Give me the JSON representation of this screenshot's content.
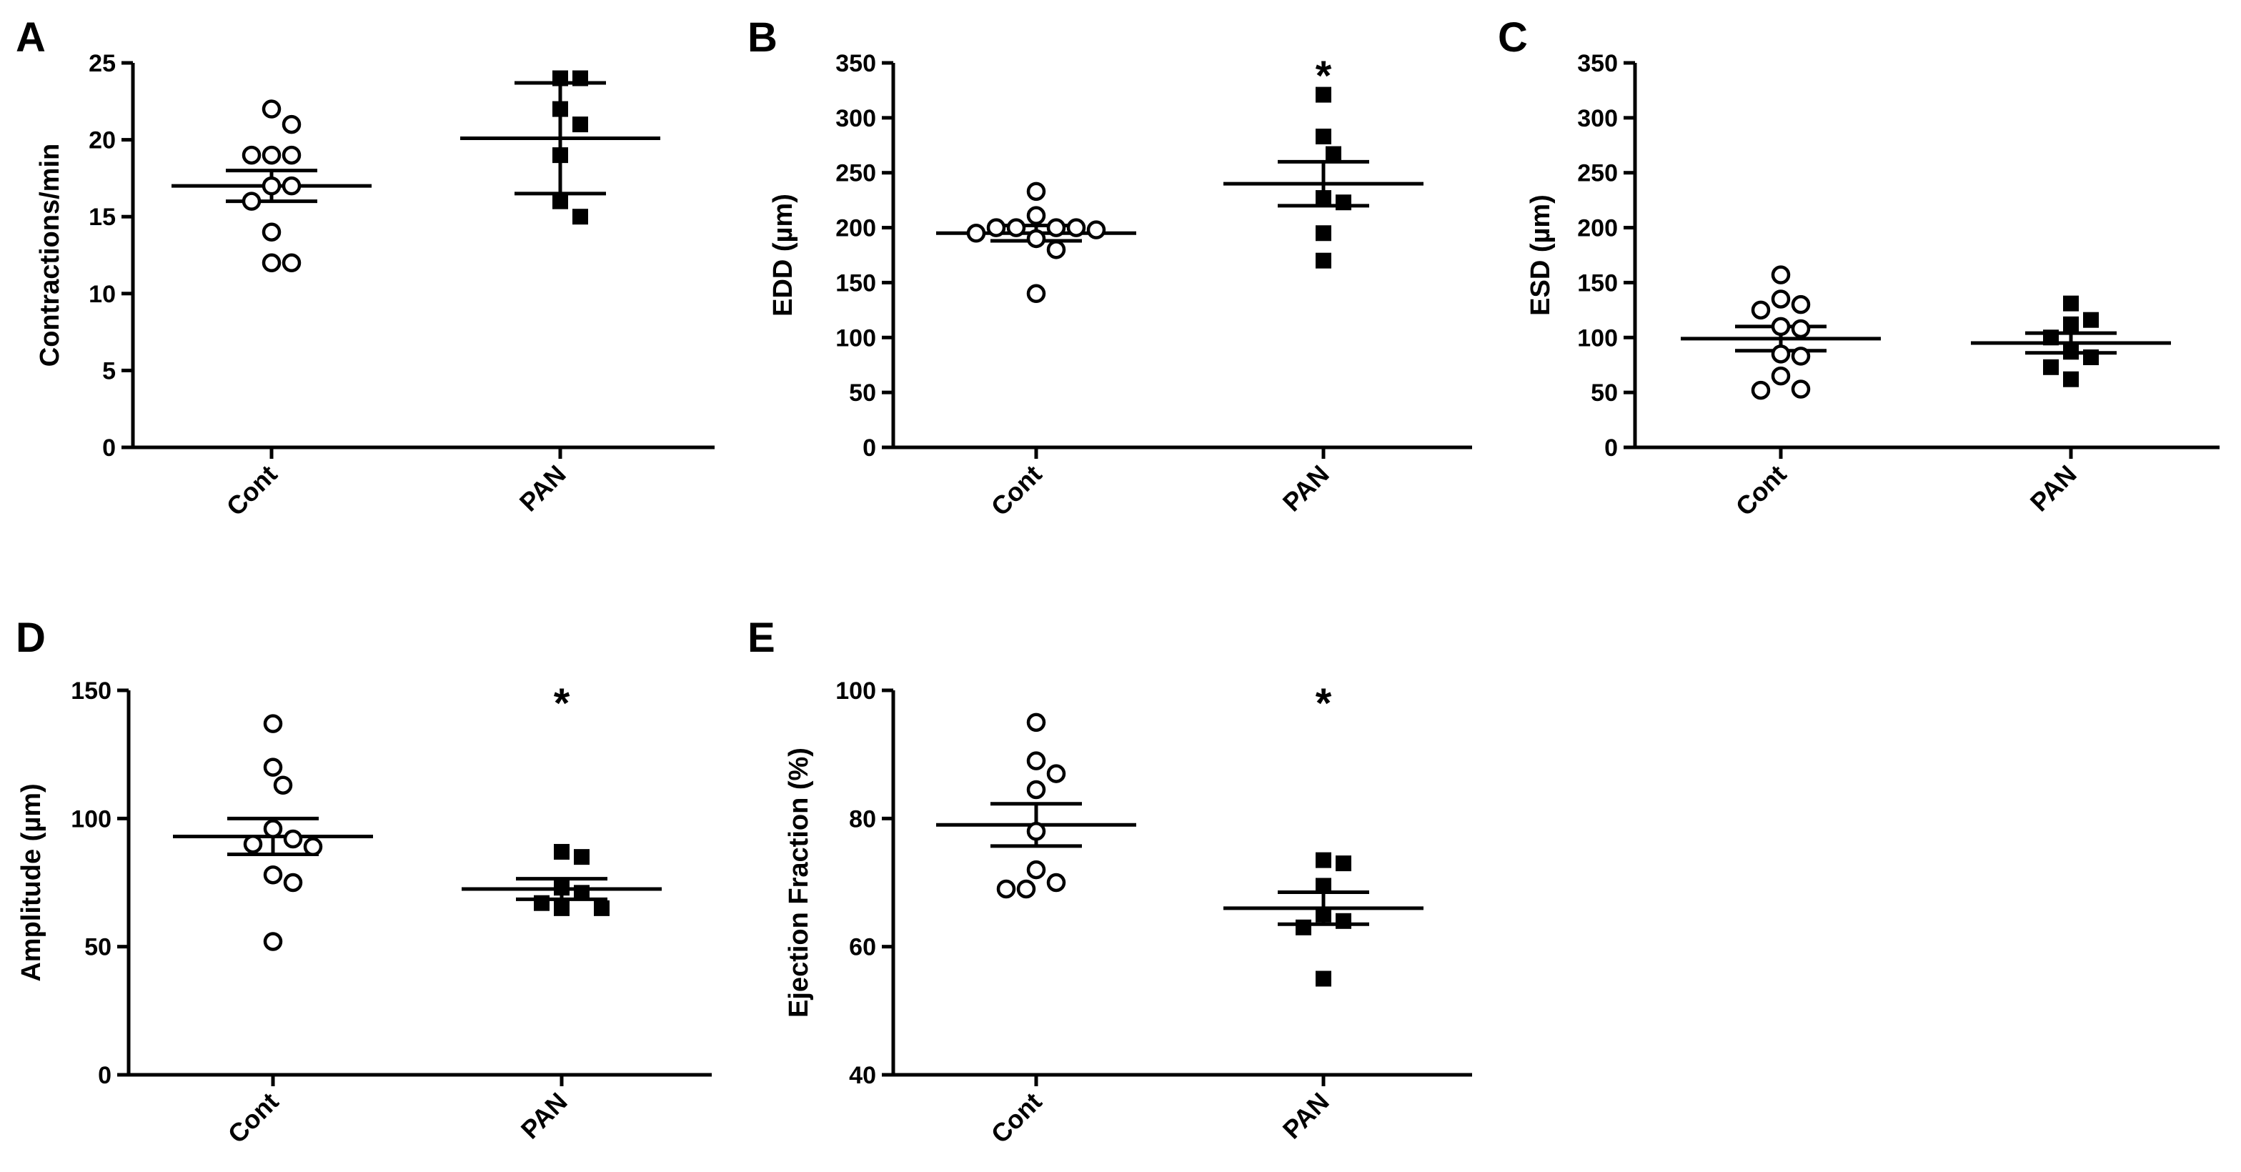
{
  "figure_title": "",
  "chart_data": [
    {
      "id": "A",
      "type": "scatter",
      "panel_label": "A",
      "title": "",
      "xlabel": "",
      "ylabel": "Contractions/min",
      "ylim": [
        0,
        25
      ],
      "yticks": [
        0,
        5,
        10,
        15,
        20,
        25
      ],
      "categories": [
        "Cont",
        "PAN"
      ],
      "significance": [
        "",
        ""
      ],
      "series": [
        {
          "name": "Cont",
          "marker": "open-circle",
          "values": [
            22,
            21,
            19,
            19,
            19,
            17,
            17,
            16,
            14,
            12,
            12
          ],
          "mean": 17.0,
          "sem": 1.0
        },
        {
          "name": "PAN",
          "marker": "filled-square",
          "values": [
            24,
            24,
            22,
            21,
            19,
            16,
            15
          ],
          "mean": 20.1,
          "sem_upper": 3.6,
          "sem_lower": 3.6
        }
      ]
    },
    {
      "id": "B",
      "type": "scatter",
      "panel_label": "B",
      "title": "",
      "xlabel": "",
      "ylabel": "EDD (µm)",
      "ylim": [
        0,
        350
      ],
      "yticks": [
        0,
        50,
        100,
        150,
        200,
        250,
        300,
        350
      ],
      "categories": [
        "Cont",
        "PAN"
      ],
      "significance": [
        "",
        "*"
      ],
      "series": [
        {
          "name": "Cont",
          "marker": "open-circle",
          "values": [
            233,
            211,
            200,
            200,
            200,
            200,
            198,
            195,
            190,
            180,
            140
          ],
          "mean": 195,
          "sem": 7
        },
        {
          "name": "PAN",
          "marker": "filled-square",
          "values": [
            321,
            283,
            267,
            223,
            227,
            195,
            170
          ],
          "mean": 240,
          "sem": 20
        }
      ]
    },
    {
      "id": "C",
      "type": "scatter",
      "panel_label": "C",
      "title": "",
      "xlabel": "",
      "ylabel": "ESD (µm)",
      "ylim": [
        0,
        350
      ],
      "yticks": [
        0,
        50,
        100,
        150,
        200,
        250,
        300,
        350
      ],
      "categories": [
        "Cont",
        "PAN"
      ],
      "significance": [
        "",
        ""
      ],
      "series": [
        {
          "name": "Cont",
          "marker": "open-circle",
          "values": [
            157,
            135,
            130,
            125,
            110,
            108,
            85,
            83,
            65,
            53,
            52
          ],
          "mean": 99,
          "sem": 11
        },
        {
          "name": "PAN",
          "marker": "filled-square",
          "values": [
            131,
            116,
            112,
            100,
            87,
            82,
            73,
            62
          ],
          "mean": 95,
          "sem": 9
        }
      ]
    },
    {
      "id": "D",
      "type": "scatter",
      "panel_label": "D",
      "title": "",
      "xlabel": "",
      "ylabel": "Amplitude (µm)",
      "ylim": [
        0,
        150
      ],
      "yticks": [
        0,
        50,
        100,
        150
      ],
      "categories": [
        "Cont",
        "PAN"
      ],
      "significance": [
        "",
        "*"
      ],
      "series": [
        {
          "name": "Cont",
          "marker": "open-circle",
          "values": [
            137,
            120,
            113,
            96,
            92,
            90,
            89,
            78,
            75,
            52
          ],
          "mean": 93,
          "sem": 7
        },
        {
          "name": "PAN",
          "marker": "filled-square",
          "values": [
            87,
            85,
            73,
            71,
            67,
            65,
            65
          ],
          "mean": 72.5,
          "sem": 4
        }
      ]
    },
    {
      "id": "E",
      "type": "scatter",
      "panel_label": "E",
      "title": "",
      "xlabel": "",
      "ylabel": "Ejection Fraction (%)",
      "ylim": [
        40,
        100
      ],
      "yticks": [
        40,
        60,
        80,
        100
      ],
      "categories": [
        "Cont",
        "PAN"
      ],
      "significance": [
        "",
        "*"
      ],
      "series": [
        {
          "name": "Cont",
          "marker": "open-circle",
          "values": [
            95,
            89,
            87,
            84.5,
            78,
            72,
            70,
            69,
            69
          ],
          "mean": 79,
          "sem": 3.3
        },
        {
          "name": "PAN",
          "marker": "filled-square",
          "values": [
            73.5,
            73,
            69.5,
            65,
            64,
            63,
            55
          ],
          "mean": 66,
          "sem": 2.5
        }
      ]
    }
  ]
}
